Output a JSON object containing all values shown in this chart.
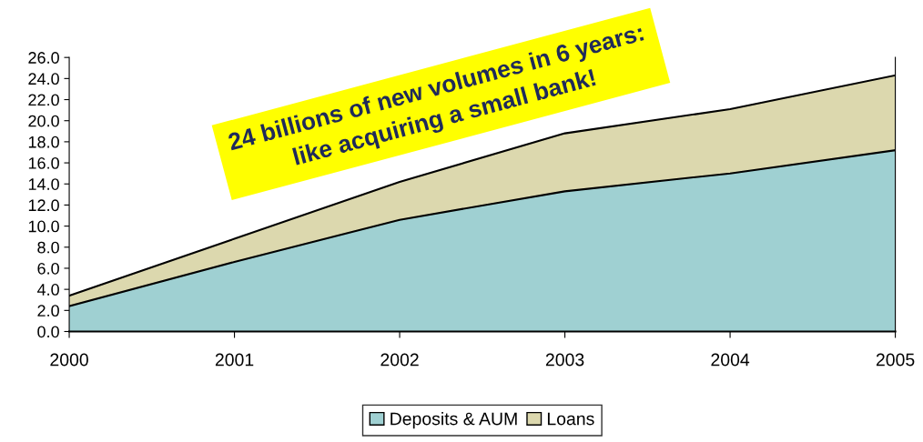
{
  "chart_data": {
    "type": "area",
    "stacked": true,
    "categories": [
      "2000",
      "2001",
      "2002",
      "2003",
      "2004",
      "2005"
    ],
    "series": [
      {
        "name": "Deposits & AUM",
        "color": "#9fd0d2",
        "values": [
          2.4,
          6.6,
          10.6,
          13.3,
          15.0,
          17.2
        ]
      },
      {
        "name": "Loans",
        "color": "#dcd8ae",
        "values": [
          1.0,
          2.2,
          3.6,
          5.5,
          6.1,
          7.1
        ]
      }
    ],
    "ylim": [
      0,
      26
    ],
    "yticks": [
      {
        "value": 0,
        "label": "0.0"
      },
      {
        "value": 2,
        "label": "2.0"
      },
      {
        "value": 4,
        "label": "4.0"
      },
      {
        "value": 6,
        "label": "6.0"
      },
      {
        "value": 8,
        "label": "8.0"
      },
      {
        "value": 10,
        "label": "10.0"
      },
      {
        "value": 12,
        "label": "12.0"
      },
      {
        "value": 14,
        "label": "14.0"
      },
      {
        "value": 16,
        "label": "16.0"
      },
      {
        "value": 18,
        "label": "18.0"
      },
      {
        "value": 20,
        "label": "20.0"
      },
      {
        "value": 22,
        "label": "22.0"
      },
      {
        "value": 24,
        "label": "24.0"
      },
      {
        "value": 26,
        "label": "26.0"
      }
    ],
    "annotations": [
      "24 billions of new volumes in 6 years:\nlike acquiring a small bank!"
    ],
    "grid": false,
    "legend": "bottom"
  }
}
